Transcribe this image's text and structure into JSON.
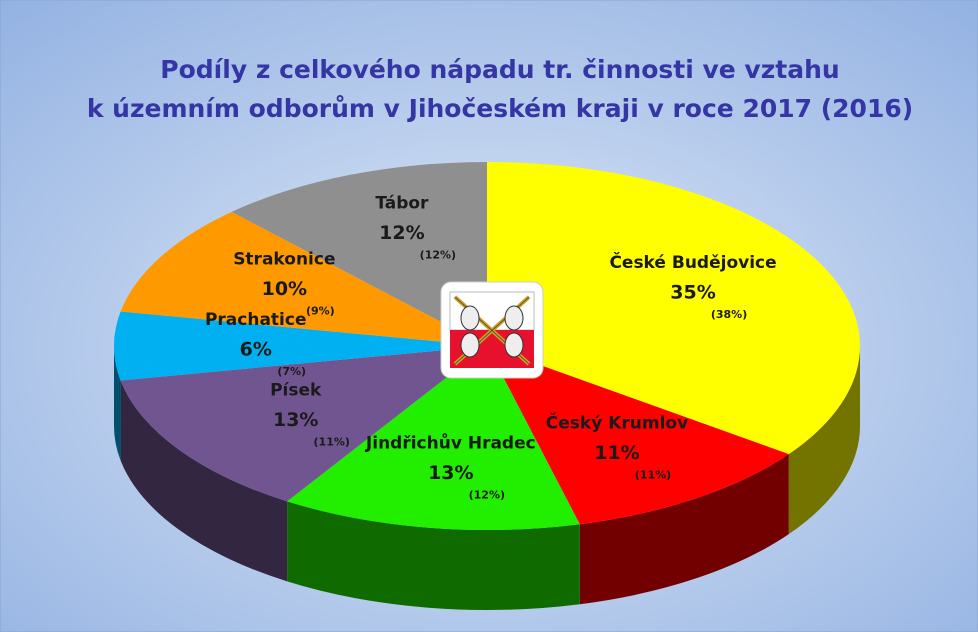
{
  "chart_data": {
    "type": "pie",
    "title": [
      "Podíly z celkového nápadu tr. činnosti ve vztahu",
      "k územním odborům v Jihočeském kraji v roce 2017 (2016)"
    ],
    "categories": [
      "České Budějovice",
      "Český Krumlov",
      "Jindřichův Hradec",
      "Písek",
      "Prachatice",
      "Strakonice",
      "Tábor"
    ],
    "values": [
      35,
      11,
      13,
      13,
      6,
      10,
      12
    ],
    "value_labels": [
      "35%",
      "11%",
      "13%",
      "13%",
      "6%",
      "10%",
      "12%"
    ],
    "previous_values": [
      38,
      11,
      12,
      11,
      7,
      9,
      12
    ],
    "previous_value_labels": [
      "(38%)",
      "(11%)",
      "(12%)",
      "(11%)",
      "(7%)",
      "(9%)",
      "(12%)"
    ],
    "colors": [
      "#ffff00",
      "#ff0000",
      "#22ee00",
      "#715591",
      "#00b0f0",
      "#ff9900",
      "#8f8f8f"
    ]
  }
}
